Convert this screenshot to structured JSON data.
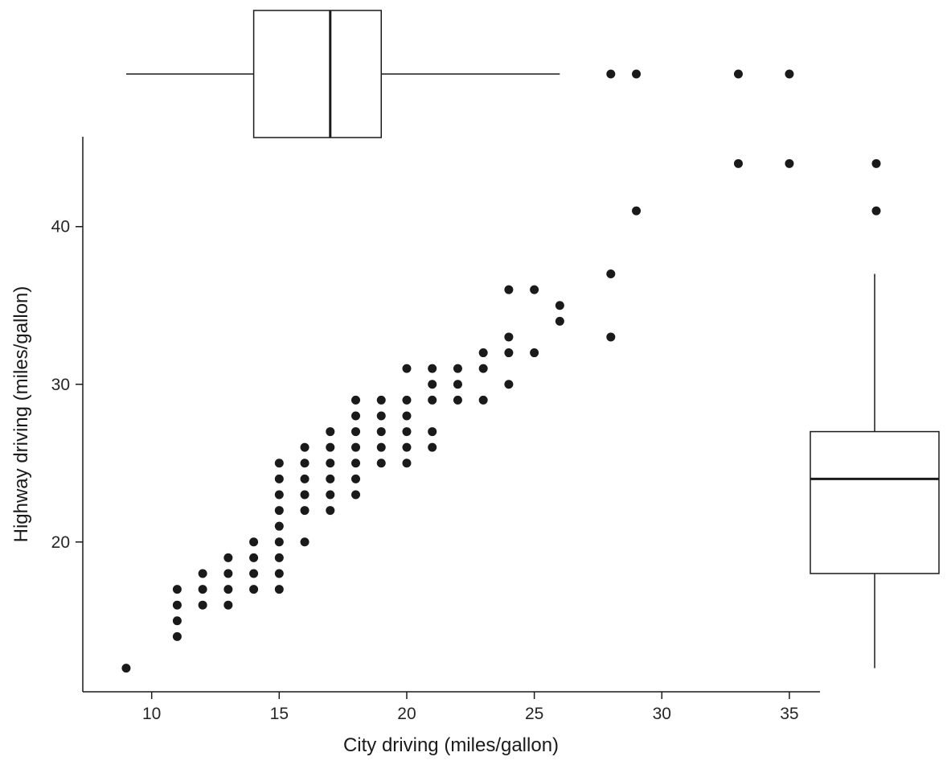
{
  "chart_data": {
    "type": "scatter",
    "title": "",
    "xlabel": "City driving (miles/gallon)",
    "ylabel": "Highway driving (miles/gallon)",
    "x_ticks": [
      10,
      15,
      20,
      25,
      30,
      35
    ],
    "y_ticks": [
      20,
      30,
      40
    ],
    "xlim": [
      7.3,
      36.2
    ],
    "ylim": [
      10.5,
      45.7
    ],
    "grid": false,
    "point_color": "#1a1a1a",
    "line_color": "#1a1a1a",
    "background_color": "#ffffff",
    "points": [
      [
        9,
        12
      ],
      [
        11,
        14
      ],
      [
        11,
        15
      ],
      [
        11,
        16
      ],
      [
        11,
        17
      ],
      [
        12,
        16
      ],
      [
        12,
        17
      ],
      [
        12,
        18
      ],
      [
        13,
        16
      ],
      [
        13,
        17
      ],
      [
        13,
        18
      ],
      [
        13,
        19
      ],
      [
        14,
        17
      ],
      [
        14,
        18
      ],
      [
        14,
        19
      ],
      [
        14,
        20
      ],
      [
        15,
        17
      ],
      [
        15,
        18
      ],
      [
        15,
        19
      ],
      [
        15,
        20
      ],
      [
        15,
        21
      ],
      [
        15,
        22
      ],
      [
        15,
        23
      ],
      [
        15,
        24
      ],
      [
        15,
        25
      ],
      [
        16,
        20
      ],
      [
        16,
        22
      ],
      [
        16,
        23
      ],
      [
        16,
        24
      ],
      [
        16,
        25
      ],
      [
        16,
        26
      ],
      [
        17,
        22
      ],
      [
        17,
        23
      ],
      [
        17,
        24
      ],
      [
        17,
        25
      ],
      [
        17,
        26
      ],
      [
        17,
        27
      ],
      [
        18,
        23
      ],
      [
        18,
        24
      ],
      [
        18,
        25
      ],
      [
        18,
        26
      ],
      [
        18,
        27
      ],
      [
        18,
        28
      ],
      [
        18,
        29
      ],
      [
        19,
        25
      ],
      [
        19,
        26
      ],
      [
        19,
        27
      ],
      [
        19,
        28
      ],
      [
        19,
        29
      ],
      [
        20,
        25
      ],
      [
        20,
        26
      ],
      [
        20,
        27
      ],
      [
        20,
        28
      ],
      [
        20,
        29
      ],
      [
        20,
        31
      ],
      [
        21,
        26
      ],
      [
        21,
        27
      ],
      [
        21,
        29
      ],
      [
        21,
        30
      ],
      [
        21,
        31
      ],
      [
        22,
        29
      ],
      [
        22,
        30
      ],
      [
        22,
        31
      ],
      [
        23,
        29
      ],
      [
        23,
        31
      ],
      [
        23,
        32
      ],
      [
        24,
        30
      ],
      [
        24,
        32
      ],
      [
        24,
        33
      ],
      [
        24,
        36
      ],
      [
        25,
        32
      ],
      [
        25,
        36
      ],
      [
        26,
        34
      ],
      [
        26,
        35
      ],
      [
        28,
        33
      ],
      [
        28,
        37
      ],
      [
        29,
        41
      ],
      [
        33,
        44
      ],
      [
        35,
        44
      ]
    ],
    "marginal_boxplots": {
      "city": {
        "orientation": "horizontal",
        "whisker_min": 9,
        "q1": 14,
        "median": 17,
        "q3": 19,
        "whisker_max": 26,
        "outliers": [
          28,
          29,
          33,
          35
        ]
      },
      "highway": {
        "orientation": "vertical",
        "whisker_min": 12,
        "q1": 18,
        "median": 24,
        "q3": 27,
        "whisker_max": 37,
        "outliers": [
          41,
          44
        ]
      }
    }
  }
}
